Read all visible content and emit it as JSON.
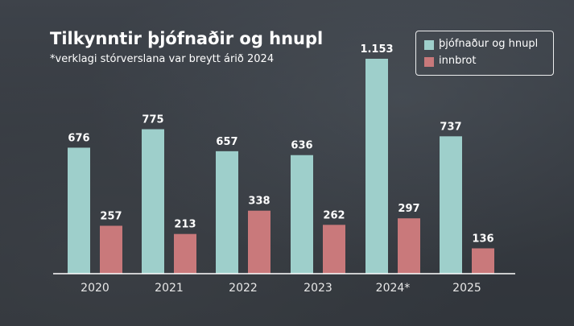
{
  "chart_data": {
    "type": "bar",
    "title": "Tilkynntir þjófnaðir og hnupl",
    "subtitle": "*verklagi stórverslana var breytt árið 2024",
    "categories": [
      "2020",
      "2021",
      "2022",
      "2023",
      "2024*",
      "2025"
    ],
    "series": [
      {
        "name": "þjófnaður og hnupl",
        "color": "#9ecfcb",
        "values": [
          676,
          775,
          657,
          636,
          1153,
          737
        ],
        "labels": [
          "676",
          "775",
          "657",
          "636",
          "1.153",
          "737"
        ]
      },
      {
        "name": "innbrot",
        "color": "#c9797b",
        "values": [
          257,
          213,
          338,
          262,
          297,
          136
        ],
        "labels": [
          "257",
          "213",
          "338",
          "262",
          "297",
          "136"
        ]
      }
    ],
    "ylim": [
      0,
      1153
    ],
    "grid": false,
    "legend": "top-right"
  }
}
